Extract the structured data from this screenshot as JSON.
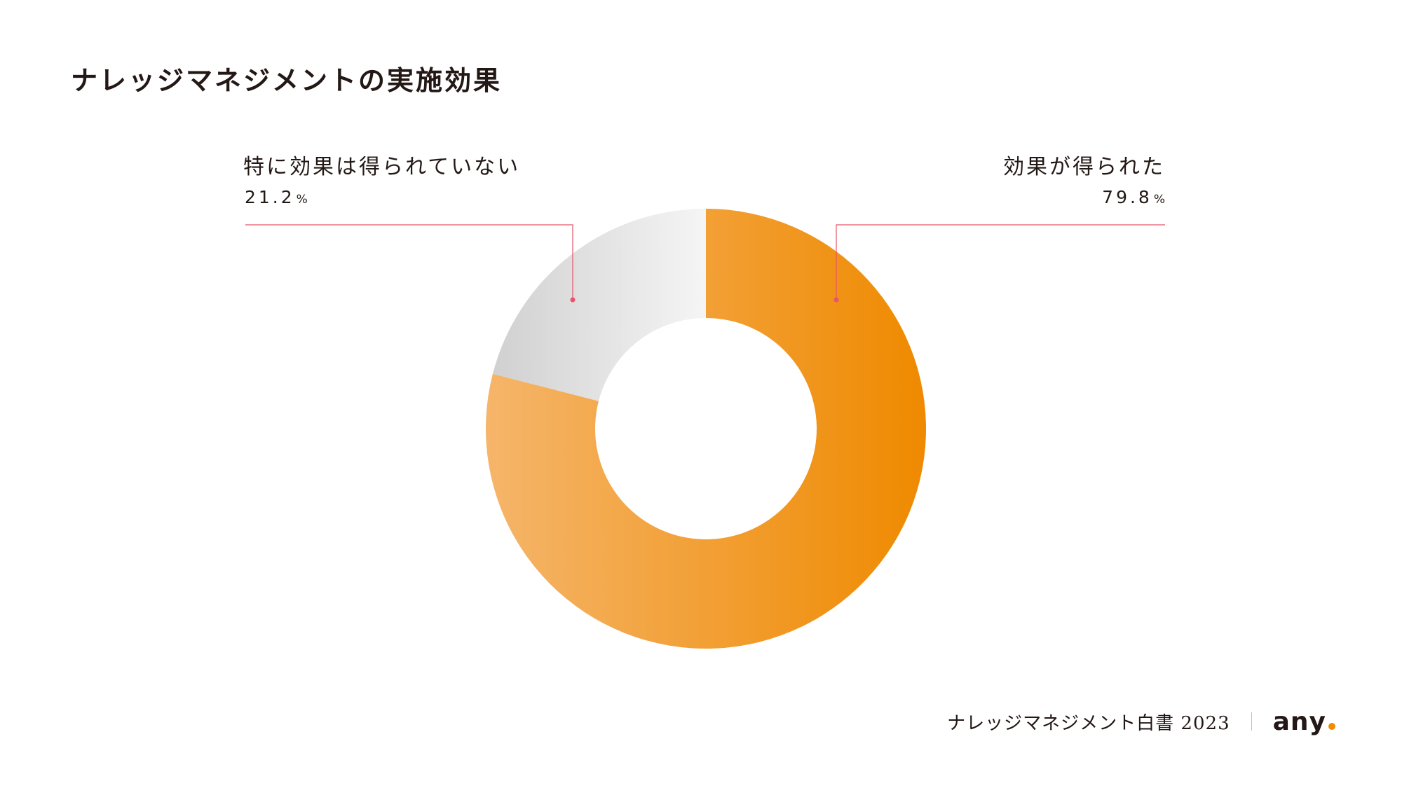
{
  "title": "ナレッジマネジメントの実施効果",
  "chart_data": {
    "type": "pie",
    "variant": "donut",
    "slices": [
      {
        "label": "効果が得られた",
        "value": 79.8,
        "unit": "%",
        "color_start": "#f5b56a",
        "color_end": "#ef8a00"
      },
      {
        "label": "特に効果は得られていない",
        "value": 21.2,
        "unit": "%",
        "color_start": "#cfcfcf",
        "color_end": "#f5f5f5"
      }
    ],
    "leader_line_color": "#e8546a"
  },
  "footer": {
    "publication": "ナレッジマネジメント白書 2023",
    "logo_text": "any",
    "logo_dot_color": "#f08c00"
  }
}
